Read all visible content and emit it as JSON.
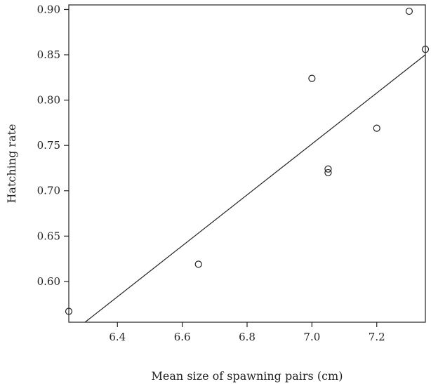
{
  "chart_data": {
    "type": "scatter",
    "title": "",
    "xlabel": "Mean size of spawning pairs (cm)",
    "ylabel": "Hatching rate",
    "xlim": [
      6.25,
      7.35
    ],
    "ylim": [
      0.555,
      0.905
    ],
    "xticks": [
      6.4,
      6.6,
      6.8,
      7.0,
      7.2
    ],
    "xtick_labels": [
      "6.4",
      "6.6",
      "6.8",
      "7.0",
      "7.2"
    ],
    "yticks": [
      0.6,
      0.65,
      0.7,
      0.75,
      0.8,
      0.85,
      0.9
    ],
    "ytick_labels": [
      "0.60",
      "0.65",
      "0.70",
      "0.75",
      "0.80",
      "0.85",
      "0.90"
    ],
    "grid": false,
    "legend": "none",
    "marker": "open-circle",
    "points": [
      {
        "x": 6.25,
        "y": 0.567
      },
      {
        "x": 6.65,
        "y": 0.619
      },
      {
        "x": 7.0,
        "y": 0.824
      },
      {
        "x": 7.05,
        "y": 0.724
      },
      {
        "x": 7.05,
        "y": 0.72
      },
      {
        "x": 7.2,
        "y": 0.769
      },
      {
        "x": 7.3,
        "y": 0.898
      },
      {
        "x": 7.35,
        "y": 0.856
      }
    ],
    "fit_line": {
      "x1": 6.3,
      "y1": 0.555,
      "x2": 7.35,
      "y2": 0.85
    }
  },
  "colors": {
    "ink": "#222222",
    "background": "#ffffff"
  }
}
